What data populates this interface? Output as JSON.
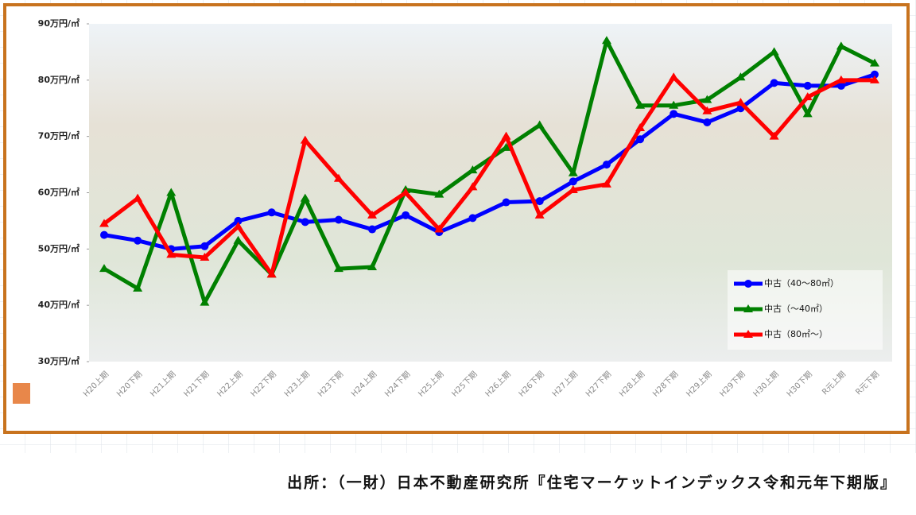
{
  "chart_data": {
    "type": "line",
    "categories": [
      "H20上期",
      "H20下期",
      "H21上期",
      "H21下期",
      "H22上期",
      "H22下期",
      "H23上期",
      "H23下期",
      "H24上期",
      "H24下期",
      "H25上期",
      "H25下期",
      "H26上期",
      "H26下期",
      "H27上期",
      "H27下期",
      "H28上期",
      "H28下期",
      "H29上期",
      "H29下期",
      "H30上期",
      "H30下期",
      "R元上期",
      "R元下期"
    ],
    "series": [
      {
        "name": "中古（40～80㎡）",
        "color": "#0000ff",
        "values": [
          52.5,
          51.5,
          50,
          50.5,
          55,
          56.5,
          54.8,
          55.2,
          53.5,
          56,
          53,
          55.5,
          58.3,
          58.5,
          62,
          65,
          69.5,
          74,
          72.5,
          75,
          79.5,
          79,
          79,
          81
        ]
      },
      {
        "name": "中古（～40㎡）",
        "color": "#008000",
        "values": [
          46.5,
          43,
          60,
          40.5,
          51.5,
          45.5,
          59,
          46.5,
          46.8,
          60.5,
          59.7,
          64,
          68,
          72,
          63.5,
          87,
          75.5,
          75.5,
          76.5,
          80.5,
          85,
          74,
          86,
          83
        ]
      },
      {
        "name": "中古（80㎡～）",
        "color": "#ff0000",
        "values": [
          54.5,
          59,
          49,
          48.5,
          54,
          45.5,
          69.3,
          62.5,
          56,
          60,
          53.5,
          61,
          70,
          56,
          60.5,
          61.5,
          71.5,
          80.5,
          74.5,
          76,
          70,
          77,
          80,
          80
        ]
      }
    ],
    "ylim": [
      30,
      90
    ],
    "yticks": [
      {
        "value": 30,
        "label": "30万円/㎡"
      },
      {
        "value": 40,
        "label": "40万円/㎡"
      },
      {
        "value": 50,
        "label": "50万円/㎡"
      },
      {
        "value": 60,
        "label": "60万円/㎡"
      },
      {
        "value": 70,
        "label": "70万円/㎡"
      },
      {
        "value": 80,
        "label": "80万円/㎡"
      },
      {
        "value": 90,
        "label": "90万円/㎡"
      }
    ],
    "legend": "lower right",
    "source": "出所：（一財）日本不動産研究所『住宅マーケットインデックス令和元年下期版』"
  }
}
